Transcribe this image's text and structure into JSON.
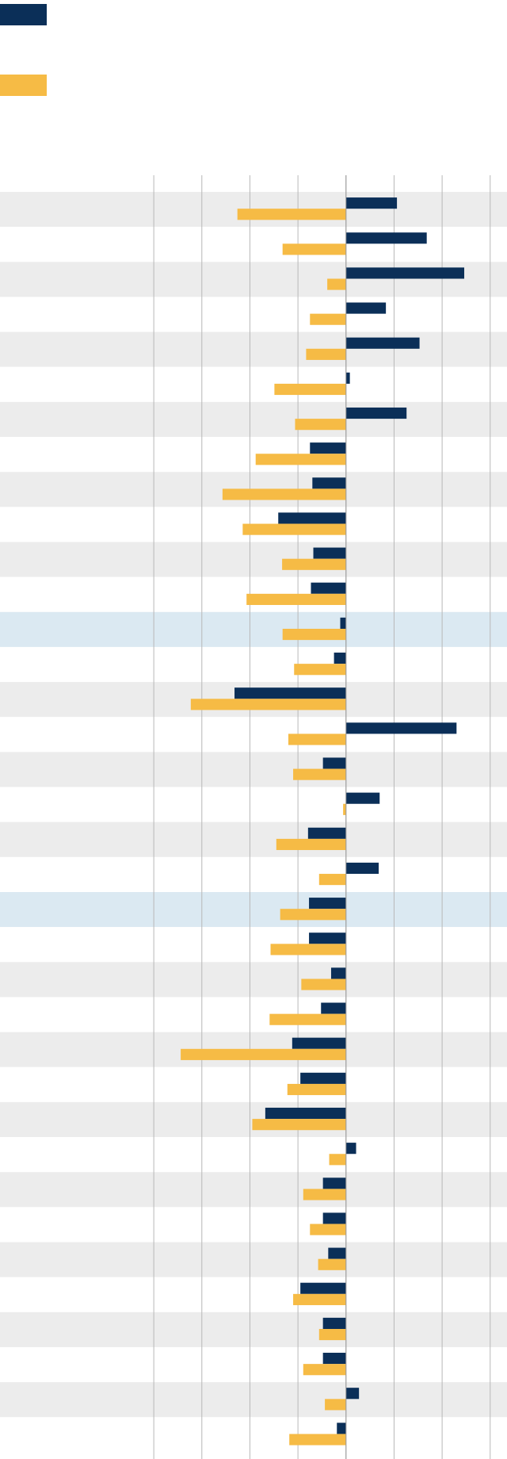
{
  "chart_data": {
    "type": "hbar",
    "categories": [
      null,
      null,
      null,
      null,
      null,
      null,
      null,
      null,
      null,
      null,
      null,
      null,
      null,
      null,
      null,
      null,
      null,
      null,
      null,
      null,
      null,
      null,
      null,
      null,
      null,
      null,
      null,
      null,
      null,
      null,
      null,
      null,
      null,
      null,
      null,
      null
    ],
    "series": [
      {
        "color": "#0b2f58",
        "values": [
          1.06,
          1.68,
          2.46,
          0.83,
          1.53,
          0.08,
          1.26,
          -0.75,
          -0.7,
          -1.41,
          -0.68,
          -0.73,
          -0.12,
          -0.25,
          -2.32,
          2.3,
          -0.48,
          0.7,
          -0.79,
          0.68,
          -0.77,
          -0.77,
          -0.31,
          -0.52,
          -1.12,
          -0.95,
          -1.68,
          0.21,
          -0.48,
          -0.48,
          -0.37,
          -0.95,
          -0.48,
          -0.48,
          0.27,
          -0.19
        ]
      },
      {
        "color": "#f6bb45",
        "values": [
          -2.26,
          -1.32,
          -0.39,
          -0.75,
          -0.83,
          -1.49,
          -1.06,
          -1.88,
          -2.57,
          -2.15,
          -1.33,
          -2.07,
          -1.32,
          -1.08,
          -3.23,
          -1.2,
          -1.1,
          -0.06,
          -1.45,
          -0.56,
          -1.37,
          -1.57,
          -0.93,
          -1.59,
          -3.44,
          -1.22,
          -1.95,
          -0.35,
          -0.89,
          -0.75,
          -0.58,
          -1.1,
          -0.56,
          -0.89,
          -0.44,
          -1.18
        ]
      }
    ],
    "xlim": [
      -7.2,
      3.35
    ],
    "xticks": [
      -4,
      -3,
      -2,
      -1,
      0,
      1,
      2,
      3
    ],
    "grid": true,
    "stripe_color": "#ececec",
    "highlight_color": "#dbe9f2",
    "highlight_rows": [
      12,
      20
    ]
  }
}
